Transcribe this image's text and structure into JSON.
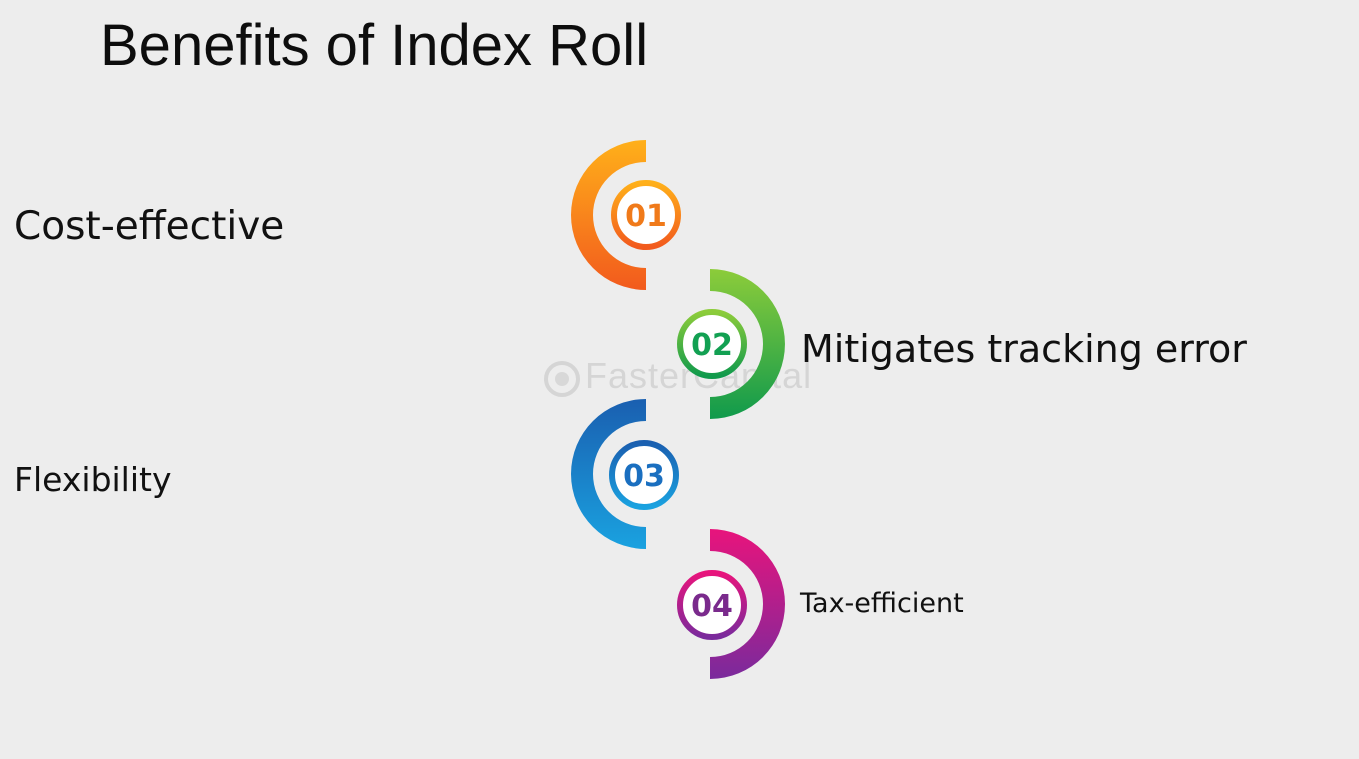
{
  "title": "Benefits of Index Roll",
  "watermark": "FasterCapital",
  "steps": [
    {
      "number": "01",
      "label": "Cost-effective",
      "color_start": "#ffb01a",
      "color_end": "#f25a1d",
      "text_color": "#f07a1a"
    },
    {
      "number": "02",
      "label": "Mitigates tracking error",
      "color_start": "#8ccc3a",
      "color_end": "#109a4c",
      "text_color": "#12a052"
    },
    {
      "number": "03",
      "label": "Flexibility",
      "color_start": "#1a5fb0",
      "color_end": "#1aa2e0",
      "text_color": "#1a6fc0"
    },
    {
      "number": "04",
      "label": "Tax-efficient",
      "color_start": "#e8147c",
      "color_end": "#7a2a9c",
      "text_color": "#7a2a8c"
    }
  ]
}
